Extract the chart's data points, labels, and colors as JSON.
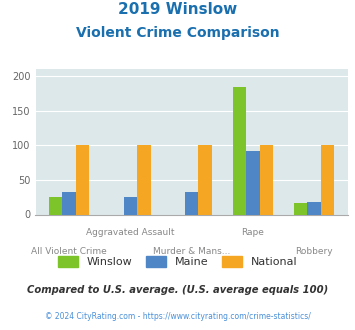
{
  "title_line1": "2019 Winslow",
  "title_line2": "Violent Crime Comparison",
  "title_color": "#1a6faf",
  "categories": [
    "All Violent Crime",
    "Aggravated Assault",
    "Murder & Mans...",
    "Rape",
    "Robbery"
  ],
  "labels_row1": [
    "",
    "Aggravated Assault",
    "",
    "Rape",
    ""
  ],
  "labels_row2": [
    "All Violent Crime",
    "",
    "Murder & Mans...",
    "",
    "Robbery"
  ],
  "winslow": [
    25,
    0,
    0,
    185,
    17
  ],
  "maine": [
    32,
    25,
    32,
    92,
    18
  ],
  "national": [
    100,
    100,
    100,
    100,
    100
  ],
  "winslow_color": "#7dc42a",
  "maine_color": "#4f86c6",
  "national_color": "#f5a623",
  "ylim": [
    0,
    210
  ],
  "yticks": [
    0,
    50,
    100,
    150,
    200
  ],
  "bg_color": "#dde8ea",
  "grid_color": "#ffffff",
  "footnote1": "Compared to U.S. average. (U.S. average equals 100)",
  "footnote1_color": "#333333",
  "footnote2": "© 2024 CityRating.com - https://www.cityrating.com/crime-statistics/",
  "footnote2_color": "#4a90d9",
  "legend_labels": [
    "Winslow",
    "Maine",
    "National"
  ],
  "legend_label_color": "#333333"
}
